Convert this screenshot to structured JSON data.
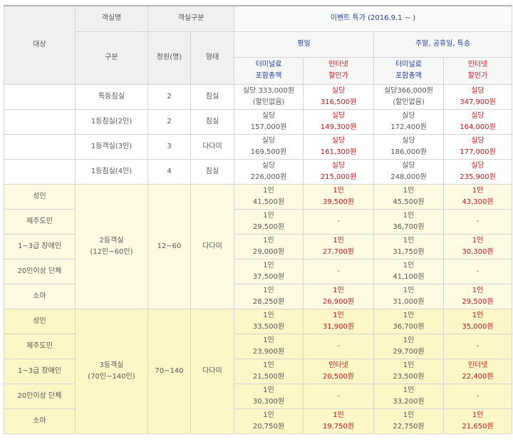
{
  "header": {
    "target": "대상",
    "room_name": "객실명",
    "room_category": "객실구분",
    "event": "이벤트 특가 (2016.9.1 ~ )",
    "category": "구분",
    "capacity": "정원(명)",
    "type": "형태",
    "weekday": "평일",
    "weekend": "주말, 공휴일, 특송",
    "terminal_fee_l1": "터미널료",
    "terminal_fee_l2": "포함총액",
    "internet_l1": "인터넷",
    "internet_l2": "할인가"
  },
  "cabin_rows": [
    {
      "name": "특등침실",
      "cap": "2",
      "type": "침실",
      "wd_t1": "실당 333,000원",
      "wd_t2": "(할인없음)",
      "wd_i1": "실당",
      "wd_i2": "316,500원",
      "we_t1": "실당366,000원",
      "we_t2": "(할인없음)",
      "we_i1": "실당",
      "we_i2": "347,900원"
    },
    {
      "name": "1등침실(2인)",
      "cap": "2",
      "type": "침실",
      "wd_t1": "실당",
      "wd_t2": "157,000원",
      "wd_i1": "실당",
      "wd_i2": "149,300원",
      "we_t1": "실당",
      "we_t2": "172,400원",
      "we_i1": "실당",
      "we_i2": "164,000원"
    },
    {
      "name": "1등객실(3인)",
      "cap": "3",
      "type": "다다미",
      "wd_t1": "실당",
      "wd_t2": "169,500원",
      "wd_i1": "실당",
      "wd_i2": "161,300원",
      "we_t1": "실당",
      "we_t2": "186,000원",
      "we_i1": "실당",
      "we_i2": "177,000원"
    },
    {
      "name": "1등침실(4인)",
      "cap": "4",
      "type": "침실",
      "wd_t1": "실당",
      "wd_t2": "226,000원",
      "wd_i1": "실당",
      "wd_i2": "215,000원",
      "we_t1": "실당",
      "we_t2": "248,000원",
      "we_i1": "실당",
      "we_i2": "235,900원"
    }
  ],
  "second_class": {
    "name_l1": "2등객실",
    "name_l2": "(12인~60인)",
    "cap": "12~60",
    "type": "다다미",
    "rows": [
      {
        "target": "성인",
        "wd_t1": "1인",
        "wd_t2": "41,500원",
        "wd_i1": "1인",
        "wd_i2": "39,500원",
        "we_t1": "1인",
        "we_t2": "45,500원",
        "we_i1": "1인",
        "we_i2": "43,300원"
      },
      {
        "target": "제주도민",
        "wd_t1": "1인",
        "wd_t2": "29,500원",
        "wd_i1": "-",
        "wd_i2": "",
        "we_t1": "1인",
        "we_t2": "36,700원",
        "we_i1": "-",
        "we_i2": ""
      },
      {
        "target": "1~3급 장애인",
        "wd_t1": "1인",
        "wd_t2": "29,000원",
        "wd_i1": "1인",
        "wd_i2": "27,700원",
        "we_t1": "1인",
        "we_t2": "31,750원",
        "we_i1": "1인",
        "we_i2": "30,300원"
      },
      {
        "target": "20인이상 단체",
        "wd_t1": "1인",
        "wd_t2": "37,500원",
        "wd_i1": "-",
        "wd_i2": "",
        "we_t1": "1인",
        "we_t2": "41,100원",
        "we_i1": "-",
        "we_i2": ""
      },
      {
        "target": "소아",
        "wd_t1": "1인",
        "wd_t2": "28,250원",
        "wd_i1": "1인",
        "wd_i2": "26,900원",
        "we_t1": "1인",
        "we_t2": "31,000원",
        "we_i1": "1인",
        "we_i2": "29,500원"
      }
    ]
  },
  "third_class": {
    "name_l1": "3등객실",
    "name_l2": "(70인~140인)",
    "cap": "70~140",
    "type": "다다미",
    "rows": [
      {
        "target": "성인",
        "wd_t1": "1인",
        "wd_t2": "33,500원",
        "wd_i1": "1인",
        "wd_i2": "31,900원",
        "we_t1": "1인",
        "we_t2": "36,700원",
        "we_i1": "1인",
        "we_i2": "35,000원"
      },
      {
        "target": "제주도민",
        "wd_t1": "1인",
        "wd_t2": "23,900원",
        "wd_i1": "-",
        "wd_i2": "",
        "we_t1": "1인",
        "we_t2": "29,700원",
        "we_i1": "-",
        "we_i2": ""
      },
      {
        "target": "1~3급 장애인",
        "wd_t1": "1인",
        "wd_t2": "21,500원",
        "wd_i1": "인터넷",
        "wd_i2": "20,500원",
        "we_t1": "1인",
        "we_t2": "23,500원",
        "we_i1": "인터넷",
        "we_i2": "22,400원"
      },
      {
        "target": "20인이상 단체",
        "wd_t1": "1인",
        "wd_t2": "30,300원",
        "wd_i1": "-",
        "wd_i2": "",
        "we_t1": "1인",
        "we_t2": "33,200원",
        "we_i1": "-",
        "we_i2": ""
      },
      {
        "target": "소아",
        "wd_t1": "1인",
        "wd_t2": "20,750원",
        "wd_i1": "1인",
        "wd_i2": "19,750원",
        "we_t1": "1인",
        "we_t2": "22,750원",
        "we_i1": "1인",
        "we_i2": "21,650원"
      }
    ]
  },
  "colors": {
    "accent_blue": "#1f3f96",
    "accent_red": "#c4151c",
    "highlight_light": "#fffbe3",
    "highlight_dark": "#fdf7c8"
  }
}
